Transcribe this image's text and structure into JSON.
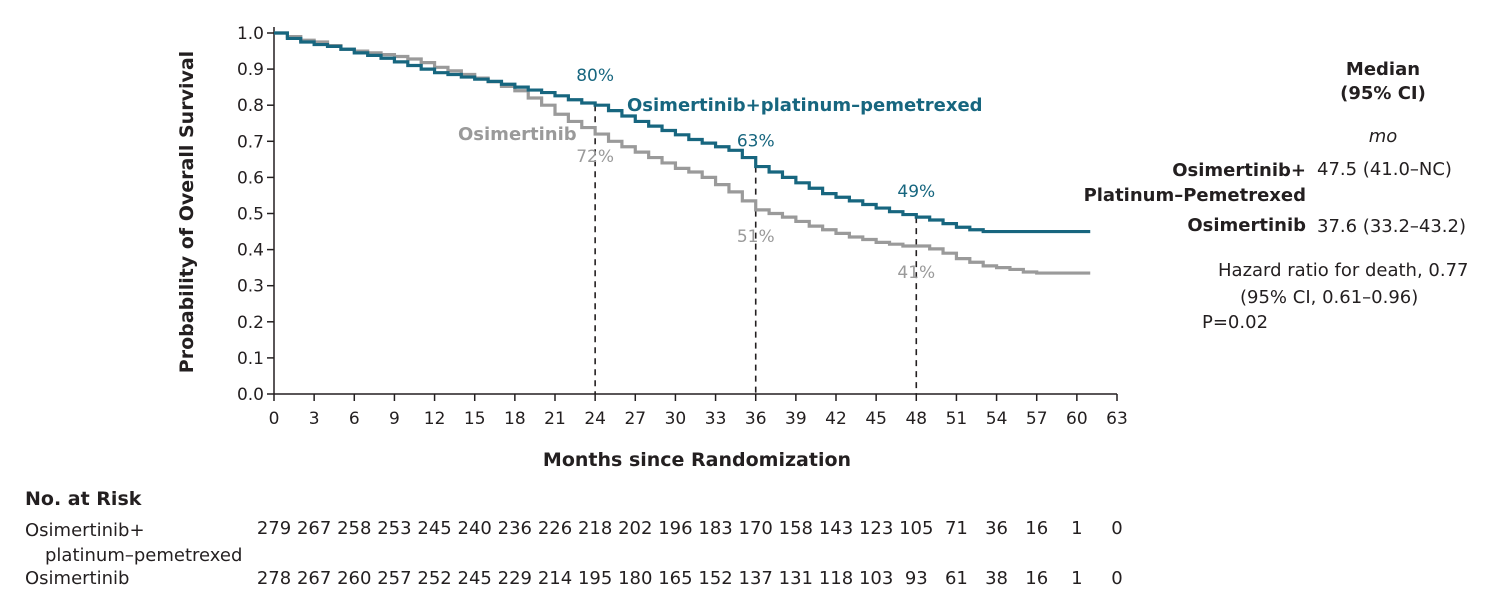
{
  "colors": {
    "combo": "#17667f",
    "osi": "#9a9a9a",
    "axis": "#231f20"
  },
  "chart_data": {
    "type": "line",
    "title": "",
    "xlabel": "Months since Randomization",
    "ylabel": "Probability of Overall Survival",
    "xlim": [
      0,
      63
    ],
    "ylim": [
      0,
      1.0
    ],
    "xticks": [
      0,
      3,
      6,
      9,
      12,
      15,
      18,
      21,
      24,
      27,
      30,
      33,
      36,
      39,
      42,
      45,
      48,
      51,
      54,
      57,
      60,
      63
    ],
    "yticks": [
      "0.0",
      "0.1",
      "0.2",
      "0.3",
      "0.4",
      "0.5",
      "0.6",
      "0.7",
      "0.8",
      "0.9",
      "1.0"
    ],
    "series": [
      {
        "name": "Osimertinib+platinum–pemetrexed",
        "color": "#17667f",
        "x": [
          0,
          1,
          2,
          3,
          4,
          5,
          6,
          7,
          8,
          9,
          10,
          11,
          12,
          13,
          14,
          15,
          16,
          17,
          18,
          19,
          20,
          21,
          22,
          23,
          24,
          25,
          26,
          27,
          28,
          29,
          30,
          31,
          32,
          33,
          34,
          35,
          36,
          37,
          38,
          39,
          40,
          41,
          42,
          43,
          44,
          45,
          46,
          47,
          48,
          49,
          50,
          51,
          52,
          53,
          54,
          55,
          56,
          57,
          58,
          59,
          60,
          61
        ],
        "y": [
          1.0,
          0.985,
          0.975,
          0.968,
          0.963,
          0.955,
          0.945,
          0.938,
          0.93,
          0.92,
          0.91,
          0.9,
          0.89,
          0.885,
          0.878,
          0.872,
          0.866,
          0.858,
          0.85,
          0.842,
          0.835,
          0.826,
          0.815,
          0.806,
          0.8,
          0.785,
          0.77,
          0.755,
          0.742,
          0.73,
          0.718,
          0.705,
          0.695,
          0.685,
          0.675,
          0.655,
          0.63,
          0.615,
          0.6,
          0.585,
          0.57,
          0.555,
          0.545,
          0.535,
          0.525,
          0.515,
          0.505,
          0.497,
          0.49,
          0.482,
          0.472,
          0.462,
          0.455,
          0.45,
          0.45,
          0.45,
          0.45,
          0.45,
          0.45,
          0.45,
          0.45,
          0.45
        ]
      },
      {
        "name": "Osimertinib",
        "color": "#9a9a9a",
        "x": [
          0,
          1,
          2,
          3,
          4,
          5,
          6,
          7,
          8,
          9,
          10,
          11,
          12,
          13,
          14,
          15,
          16,
          17,
          18,
          19,
          20,
          21,
          22,
          23,
          24,
          25,
          26,
          27,
          28,
          29,
          30,
          31,
          32,
          33,
          34,
          35,
          36,
          37,
          38,
          39,
          40,
          41,
          42,
          43,
          44,
          45,
          46,
          47,
          48,
          49,
          50,
          51,
          52,
          53,
          54,
          55,
          56,
          57,
          58,
          59,
          60,
          61
        ],
        "y": [
          1.0,
          0.99,
          0.98,
          0.975,
          0.965,
          0.955,
          0.95,
          0.945,
          0.94,
          0.935,
          0.928,
          0.918,
          0.905,
          0.895,
          0.885,
          0.875,
          0.865,
          0.852,
          0.84,
          0.82,
          0.8,
          0.775,
          0.755,
          0.738,
          0.72,
          0.7,
          0.685,
          0.67,
          0.655,
          0.64,
          0.625,
          0.615,
          0.6,
          0.58,
          0.56,
          0.535,
          0.51,
          0.5,
          0.49,
          0.478,
          0.465,
          0.455,
          0.445,
          0.435,
          0.428,
          0.42,
          0.415,
          0.41,
          0.41,
          0.402,
          0.39,
          0.375,
          0.365,
          0.355,
          0.35,
          0.345,
          0.338,
          0.335,
          0.335,
          0.335,
          0.335,
          0.335
        ]
      }
    ],
    "annotations": [
      {
        "label": "80%",
        "x": 24,
        "y": 0.8,
        "series": "combo"
      },
      {
        "label": "63%",
        "x": 36,
        "y": 0.63,
        "series": "combo"
      },
      {
        "label": "49%",
        "x": 48,
        "y": 0.49,
        "series": "combo"
      },
      {
        "label": "72%",
        "x": 24,
        "y": 0.72,
        "series": "osi"
      },
      {
        "label": "51%",
        "x": 36,
        "y": 0.51,
        "series": "osi"
      },
      {
        "label": "41%",
        "x": 48,
        "y": 0.41,
        "series": "osi"
      }
    ],
    "series_labels": {
      "combo": "Osimertinib+platinum–pemetrexed",
      "osi": "Osimertinib"
    },
    "reference_lines_x": [
      24,
      36,
      48
    ]
  },
  "legend": {
    "median_header_1": "Median",
    "median_header_2": "(95% CI)",
    "unit": "mo",
    "combo_name_1": "Osimertinib+",
    "combo_name_2": "Platinum–Pemetrexed",
    "combo_value": "47.5 (41.0–NC)",
    "osi_name": "Osimertinib",
    "osi_value": "37.6 (33.2–43.2)",
    "hr_line1": "Hazard ratio for death, 0.77",
    "hr_line2": "(95% CI, 0.61–0.96)",
    "hr_line3": "P=0.02"
  },
  "risk_table": {
    "title": "No. at Risk",
    "combo_label_1": "Osimertinib+",
    "combo_label_2": "platinum–pemetrexed",
    "osi_label": "Osimertinib",
    "combo_values": [
      "279",
      "267",
      "258",
      "253",
      "245",
      "240",
      "236",
      "226",
      "218",
      "202",
      "196",
      "183",
      "170",
      "158",
      "143",
      "123",
      "105",
      "71",
      "36",
      "16",
      "1",
      "0"
    ],
    "osi_values": [
      "278",
      "267",
      "260",
      "257",
      "252",
      "245",
      "229",
      "214",
      "195",
      "180",
      "165",
      "152",
      "137",
      "131",
      "118",
      "103",
      "93",
      "61",
      "38",
      "16",
      "1",
      "0"
    ]
  }
}
